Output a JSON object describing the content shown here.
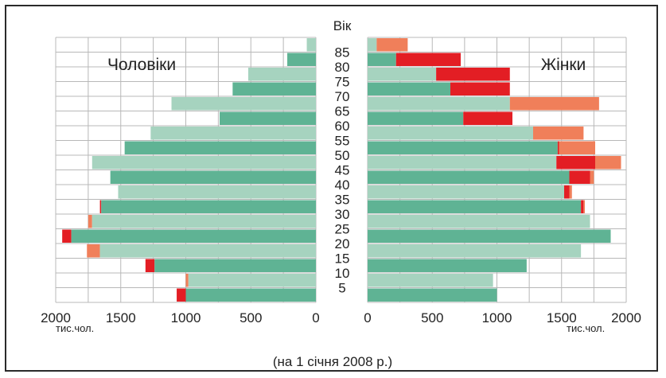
{
  "chart_data": {
    "type": "bar",
    "orientation": "horizontal-population-pyramid",
    "age_axis_title": "Вік",
    "age_groups": [
      "0-4",
      "5-9",
      "10-14",
      "15-19",
      "20-24",
      "25-29",
      "30-34",
      "35-39",
      "40-44",
      "45-49",
      "50-54",
      "55-59",
      "60-64",
      "65-69",
      "70-74",
      "75-79",
      "80-84",
      "85+"
    ],
    "age_tick_labels": [
      "5",
      "10",
      "15",
      "20",
      "25",
      "30",
      "35",
      "40",
      "45",
      "50",
      "55",
      "60",
      "65",
      "70",
      "75",
      "80",
      "85"
    ],
    "male": {
      "label": "Чоловіки",
      "values": [
        1000,
        980,
        1240,
        1660,
        1880,
        1720,
        1650,
        1520,
        1580,
        1720,
        1470,
        1270,
        740,
        1110,
        640,
        520,
        220,
        70
      ],
      "surplus": [
        1070,
        1000,
        1310,
        1760,
        1950,
        1750,
        1660,
        1520,
        1580,
        1720,
        1470,
        1270,
        740,
        1110,
        640,
        520,
        220,
        70
      ]
    },
    "female": {
      "label": "Жінки",
      "values": [
        1000,
        970,
        1230,
        1650,
        1880,
        1720,
        1650,
        1520,
        1560,
        1460,
        1470,
        1280,
        740,
        1100,
        640,
        530,
        220,
        70
      ],
      "surplus": [
        1000,
        970,
        1230,
        1650,
        1880,
        1720,
        1670,
        1560,
        1720,
        1760,
        1480,
        1280,
        1120,
        1100,
        1100,
        1100,
        720,
        70
      ],
      "excess": [
        1000,
        970,
        1230,
        1650,
        1880,
        1720,
        1680,
        1580,
        1750,
        1960,
        1760,
        1670,
        1120,
        1790,
        1100,
        1100,
        720,
        310
      ]
    },
    "x_ticks": [
      "0",
      "500",
      "1000",
      "1500",
      "2000"
    ],
    "x_unit_label": "тис.чол.",
    "xlim": [
      0,
      2000
    ],
    "grid": true,
    "footnote": "(на 1 січня 2008 р.)",
    "colors": {
      "bar_dark": "#5fb394",
      "bar_light": "#a6d3bf",
      "surplus_red": "#e31e24",
      "surplus_orange": "#f07f5a",
      "grid": "#b8b8b8"
    }
  }
}
